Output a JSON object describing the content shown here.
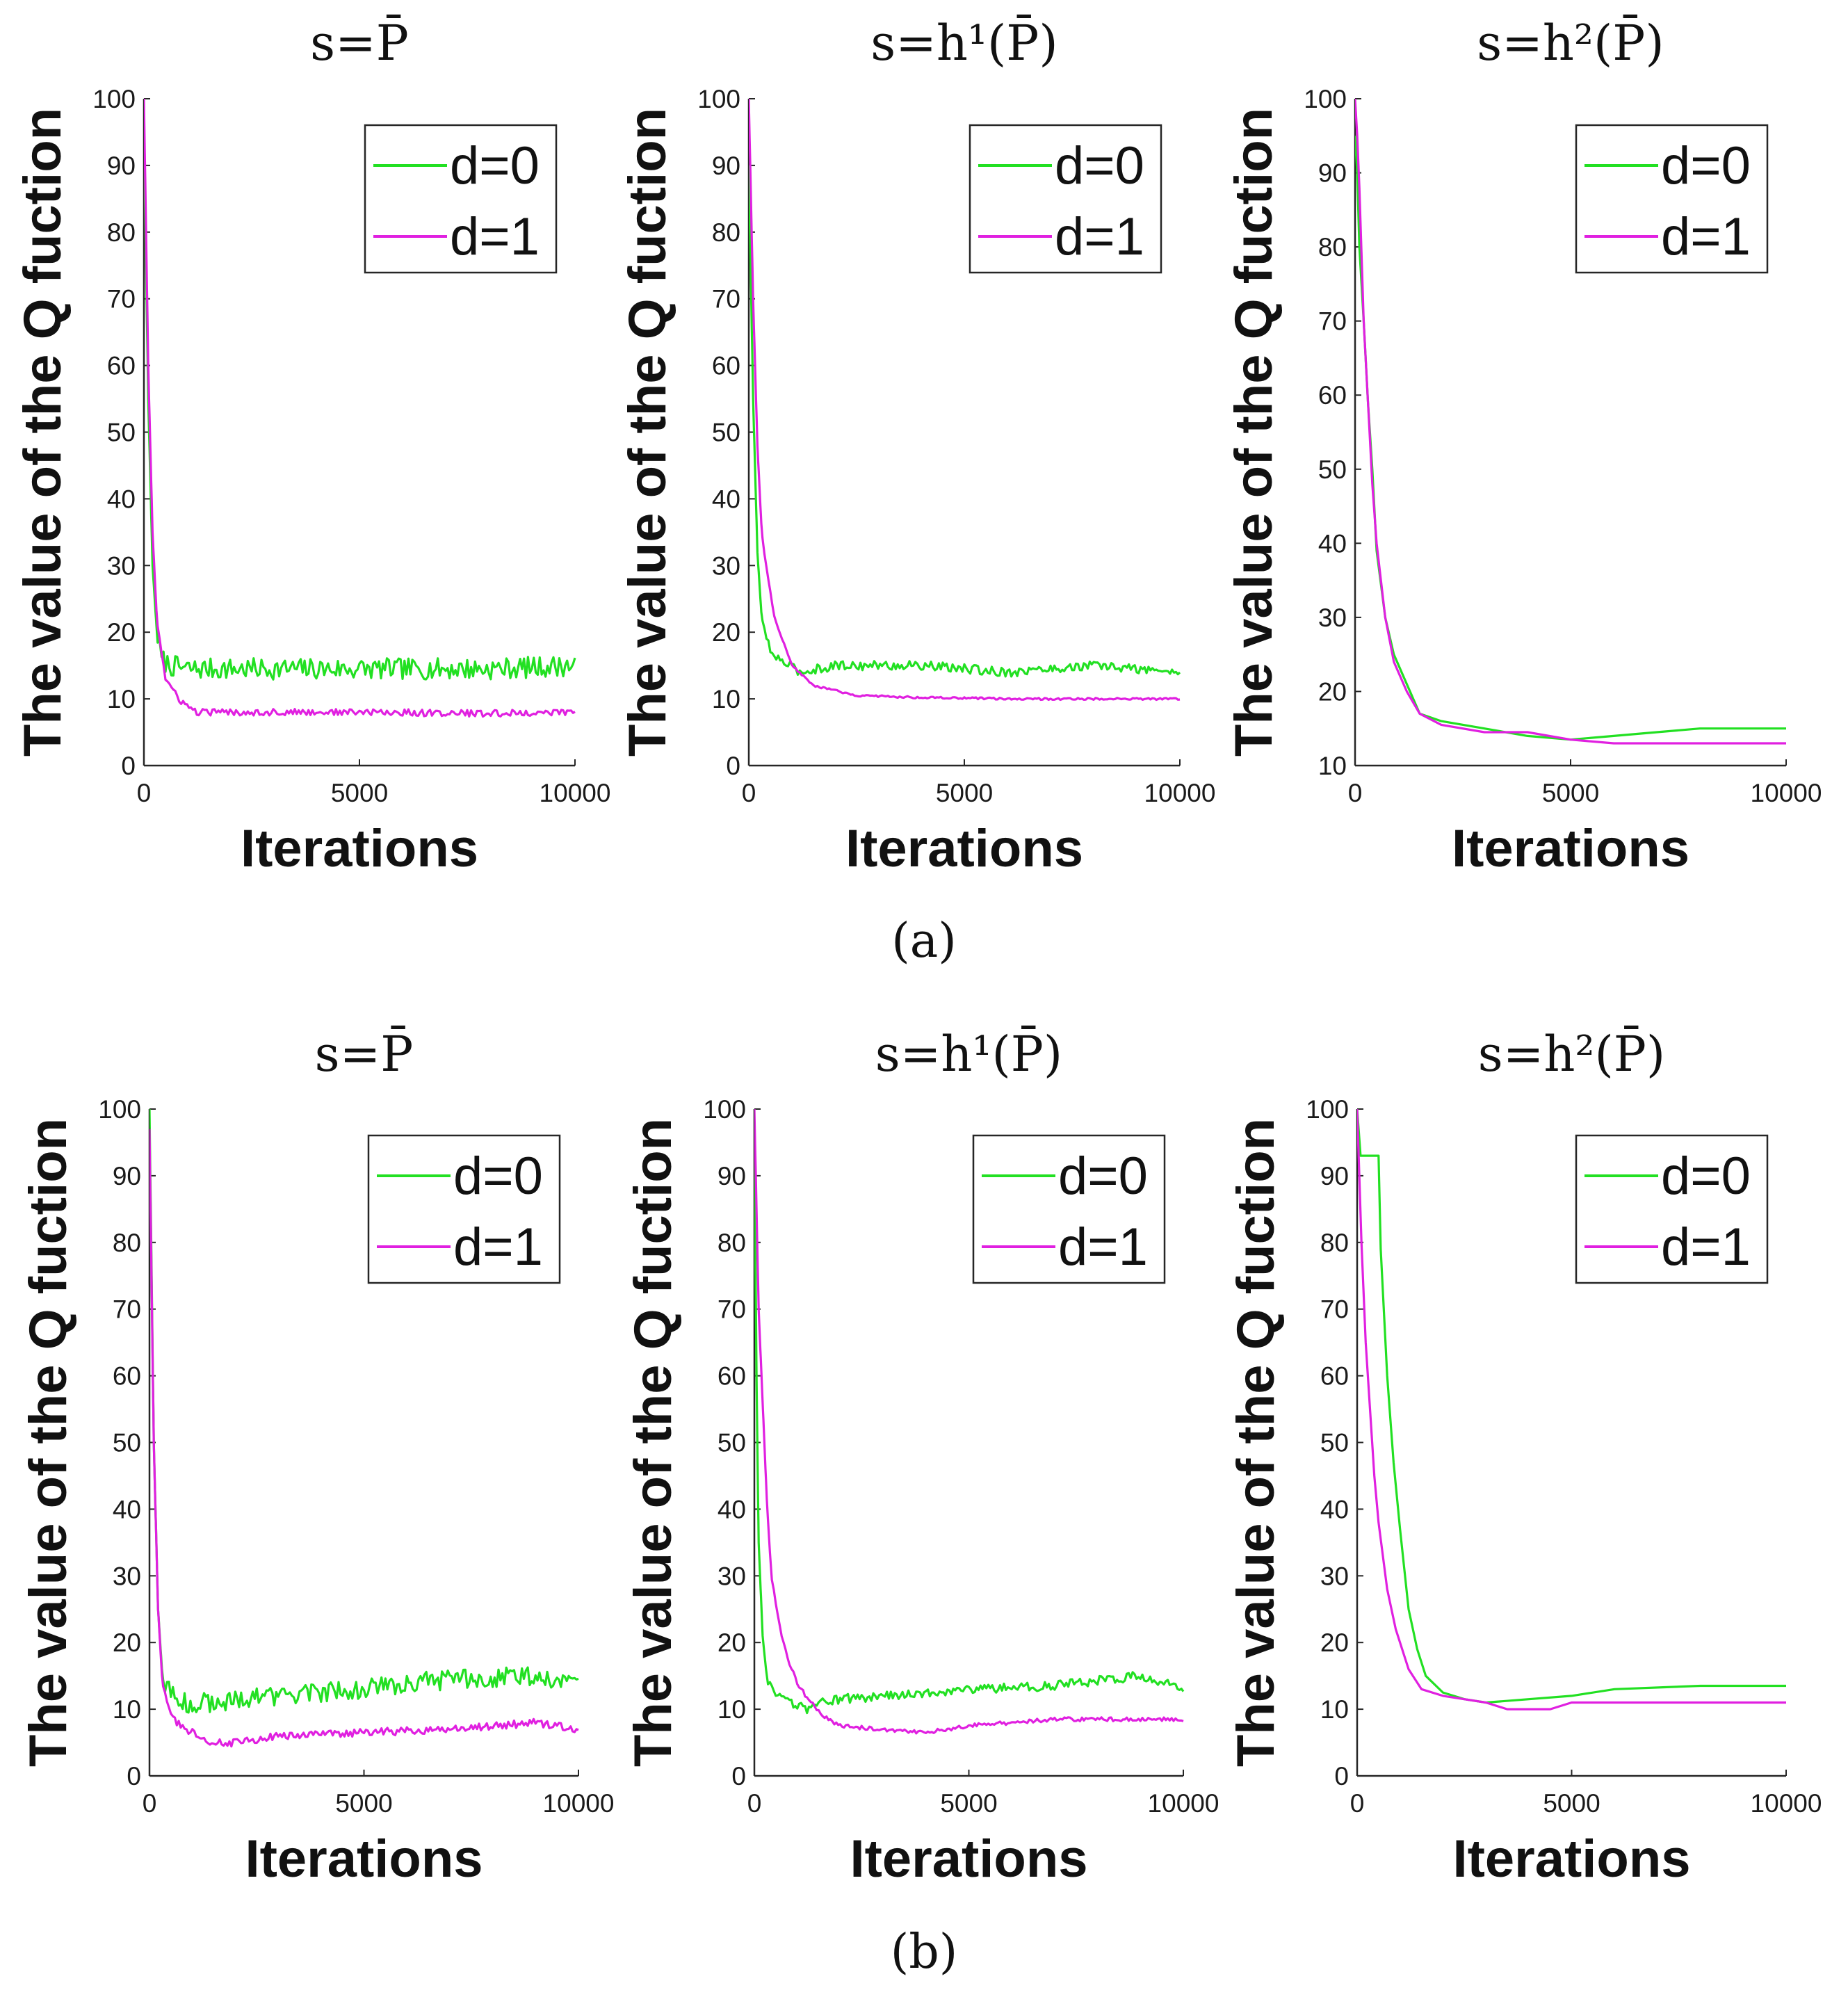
{
  "figure": {
    "captions": [
      "(a)",
      "(b)"
    ],
    "title_prefix": "s=",
    "legend_labels": [
      "d=0",
      "d=1"
    ],
    "colors": {
      "d0": "#22e022",
      "d1": "#e020e0",
      "axis": "#262626"
    }
  },
  "chart_data": [
    {
      "type": "line",
      "row": "a",
      "title": "s=P̄",
      "xlabel": "Iterations",
      "ylabel": "The value of the Q fuction",
      "xlim": [
        0,
        10000
      ],
      "ylim": [
        0,
        100
      ],
      "xticks": [
        0,
        5000,
        10000
      ],
      "yticks": [
        0,
        10,
        20,
        30,
        40,
        50,
        60,
        70,
        80,
        90,
        100
      ],
      "legend_position": "top-right",
      "series": [
        {
          "name": "d=0",
          "color": "#22e022",
          "noise": 1.6,
          "x": [
            0,
            100,
            200,
            300,
            400,
            600,
            1000,
            2000,
            5000,
            8000,
            10000
          ],
          "y": [
            95,
            55,
            30,
            20,
            16,
            15,
            14.5,
            14.5,
            14.5,
            14.5,
            15
          ]
        },
        {
          "name": "d=1",
          "color": "#e020e0",
          "noise": 0.5,
          "x": [
            0,
            100,
            200,
            300,
            500,
            800,
            1200,
            2000,
            5000,
            8000,
            10000
          ],
          "y": [
            100,
            60,
            35,
            22,
            13,
            10,
            8,
            8,
            8,
            7.8,
            8
          ]
        }
      ]
    },
    {
      "type": "line",
      "row": "a",
      "title": "s=h¹(P̄)",
      "xlabel": "Iterations",
      "ylabel": "The value of the Q fuction",
      "xlim": [
        0,
        10000
      ],
      "ylim": [
        0,
        100
      ],
      "xticks": [
        0,
        5000,
        10000
      ],
      "yticks": [
        0,
        10,
        20,
        30,
        40,
        50,
        60,
        70,
        80,
        90,
        100
      ],
      "legend_position": "top-right",
      "series": [
        {
          "name": "d=0",
          "color": "#22e022",
          "noise": 0.7,
          "x": [
            0,
            100,
            200,
            300,
            500,
            800,
            1200,
            2000,
            4000,
            6000,
            8000,
            10000
          ],
          "y": [
            90,
            55,
            32,
            22,
            17,
            15.5,
            14,
            15,
            15,
            14,
            15,
            14
          ]
        },
        {
          "name": "d=1",
          "color": "#e020e0",
          "noise": 0.15,
          "x": [
            0,
            100,
            200,
            300,
            400,
            600,
            1000,
            1500,
            2500,
            4000,
            6000,
            8000,
            10000
          ],
          "y": [
            100,
            70,
            48,
            35,
            30,
            22,
            15,
            12,
            10.5,
            10.2,
            10,
            10,
            10
          ]
        }
      ]
    },
    {
      "type": "line",
      "row": "a",
      "title": "s=h²(P̄)",
      "xlabel": "Iterations",
      "ylabel": "The value of the Q fuction",
      "xlim": [
        0,
        10000
      ],
      "ylim": [
        10,
        100
      ],
      "xticks": [
        0,
        5000,
        10000
      ],
      "yticks": [
        10,
        20,
        30,
        40,
        50,
        60,
        70,
        80,
        90,
        100
      ],
      "legend_position": "top-right",
      "series": [
        {
          "name": "d=0",
          "color": "#22e022",
          "noise": 0,
          "x": [
            0,
            50,
            100,
            200,
            300,
            400,
            500,
            700,
            900,
            1200,
            1500,
            2000,
            3000,
            4000,
            5000,
            6000,
            7000,
            8000,
            10000
          ],
          "y": [
            95,
            90,
            80,
            70,
            59,
            50,
            39,
            30,
            25,
            21,
            17,
            16,
            15,
            14,
            13.5,
            14,
            14.5,
            15,
            15
          ]
        },
        {
          "name": "d=1",
          "color": "#e020e0",
          "noise": 0,
          "x": [
            0,
            50,
            100,
            200,
            300,
            400,
            500,
            700,
            900,
            1200,
            1500,
            2000,
            3000,
            4000,
            5000,
            6000,
            8000,
            10000
          ],
          "y": [
            100,
            95,
            88,
            70,
            59,
            48,
            40,
            30,
            24,
            20,
            17,
            15.5,
            14.5,
            14.5,
            13.5,
            13,
            13,
            13
          ]
        }
      ]
    },
    {
      "type": "line",
      "row": "b",
      "title": "s=P̄",
      "xlabel": "Iterations",
      "ylabel": "The value of the Q fuction",
      "xlim": [
        0,
        10000
      ],
      "ylim": [
        0,
        100
      ],
      "xticks": [
        0,
        5000,
        10000
      ],
      "yticks": [
        0,
        10,
        20,
        30,
        40,
        50,
        60,
        70,
        80,
        90,
        100
      ],
      "legend_position": "top-right",
      "series": [
        {
          "name": "d=0",
          "color": "#22e022",
          "noise": 1.5,
          "x": [
            0,
            100,
            200,
            300,
            500,
            800,
            1500,
            3000,
            5000,
            7000,
            9000,
            10000
          ],
          "y": [
            100,
            50,
            25,
            15,
            12,
            11,
            11,
            12,
            13,
            14.5,
            15,
            14
          ]
        },
        {
          "name": "d=1",
          "color": "#e020e0",
          "noise": 0.6,
          "x": [
            0,
            100,
            200,
            300,
            500,
            800,
            1500,
            2000,
            3000,
            5000,
            7000,
            9000,
            10000
          ],
          "y": [
            97,
            50,
            25,
            14,
            9,
            7,
            5,
            5,
            6,
            6.5,
            7,
            8,
            7
          ]
        }
      ]
    },
    {
      "type": "line",
      "row": "b",
      "title": "s=h¹(P̄)",
      "xlabel": "Iterations",
      "ylabel": "The value of the Q fuction",
      "xlim": [
        0,
        10000
      ],
      "ylim": [
        0,
        100
      ],
      "xticks": [
        0,
        5000,
        10000
      ],
      "yticks": [
        0,
        10,
        20,
        30,
        40,
        50,
        60,
        70,
        80,
        90,
        100
      ],
      "legend_position": "top-right",
      "series": [
        {
          "name": "d=0",
          "color": "#22e022",
          "noise": 0.7,
          "x": [
            0,
            50,
            100,
            200,
            300,
            500,
            800,
            1200,
            1500,
            2000,
            3000,
            5000,
            7000,
            9000,
            10000
          ],
          "y": [
            95,
            60,
            35,
            20,
            14,
            12,
            11,
            10,
            11,
            11.5,
            12,
            13,
            13.5,
            15,
            13
          ]
        },
        {
          "name": "d=1",
          "color": "#e020e0",
          "noise": 0.3,
          "x": [
            0,
            100,
            200,
            300,
            400,
            600,
            800,
            1000,
            1200,
            1600,
            2000,
            3000,
            4000,
            5000,
            7000,
            10000
          ],
          "y": [
            100,
            70,
            55,
            40,
            30,
            22,
            17,
            14,
            12,
            9,
            7.5,
            7,
            6.5,
            7.5,
            8.5,
            8.5
          ]
        }
      ]
    },
    {
      "type": "line",
      "row": "b",
      "title": "s=h²(P̄)",
      "xlabel": "Iterations",
      "ylabel": "The value of the Q fuction",
      "xlim": [
        0,
        10000
      ],
      "ylim": [
        0,
        100
      ],
      "xticks": [
        0,
        5000,
        10000
      ],
      "yticks": [
        0,
        10,
        20,
        30,
        40,
        50,
        60,
        70,
        80,
        90,
        100
      ],
      "legend_position": "top-right",
      "series": [
        {
          "name": "d=0",
          "color": "#22e022",
          "noise": 0,
          "x": [
            0,
            80,
            100,
            500,
            550,
            700,
            850,
            1000,
            1200,
            1400,
            1600,
            2000,
            2500,
            3000,
            4000,
            5000,
            6000,
            8000,
            10000
          ],
          "y": [
            100,
            93,
            93,
            93,
            79,
            60,
            47,
            37,
            25,
            19,
            15,
            12.5,
            11.5,
            11,
            11.5,
            12,
            13,
            13.5,
            13.5
          ]
        },
        {
          "name": "d=1",
          "color": "#e020e0",
          "noise": 0,
          "x": [
            0,
            50,
            100,
            200,
            300,
            400,
            500,
            700,
            900,
            1200,
            1500,
            2000,
            3000,
            3500,
            4500,
            5000,
            6000,
            8000,
            10000
          ],
          "y": [
            100,
            90,
            80,
            65,
            55,
            45,
            38,
            28,
            22,
            16,
            13,
            12,
            11,
            10,
            10,
            11,
            11,
            11,
            11
          ]
        }
      ]
    }
  ]
}
